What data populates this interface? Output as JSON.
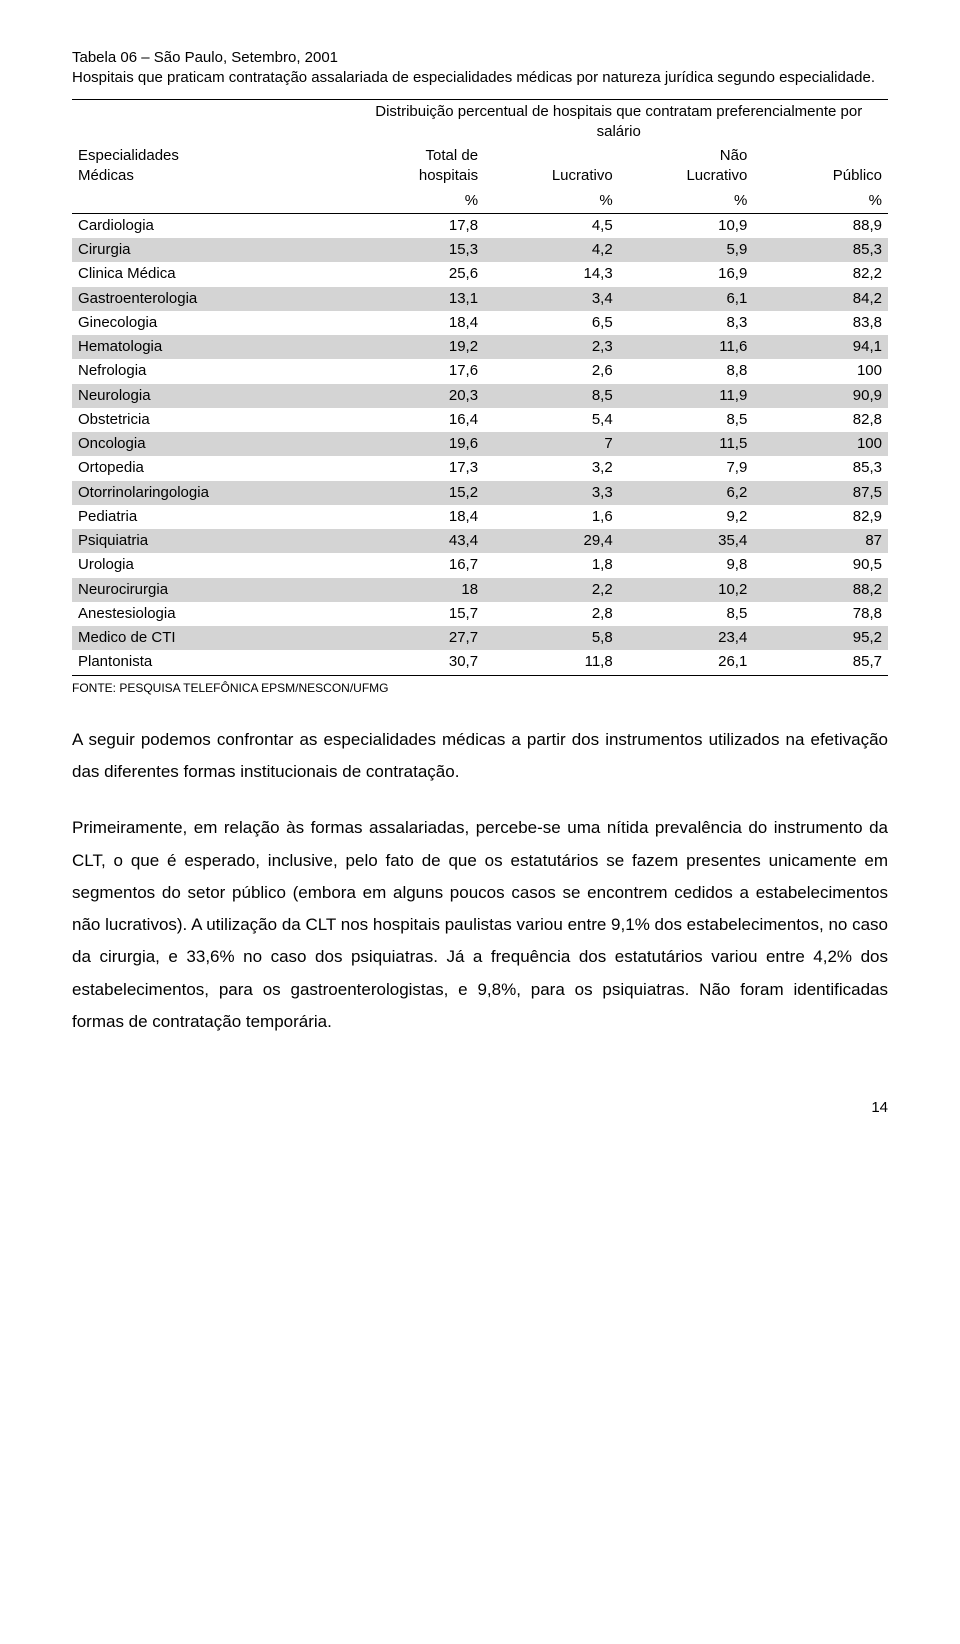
{
  "title": {
    "line1": "Tabela 06 – São Paulo, Setembro, 2001",
    "line2": "Hospitais que praticam contratação assalariada de especialidades médicas por natureza jurídica segundo especialidade."
  },
  "table": {
    "corner_label_line1": "Especialidades",
    "corner_label_line2": "Médicas",
    "merged_header": "Distribuição percentual de hospitais que contratam preferencialmente por salário",
    "col_labels": {
      "total_l1": "Total de",
      "total_l2": "hospitais",
      "lucrativo": "Lucrativo",
      "nao_l1": "Não",
      "nao_l2": "Lucrativo",
      "publico": "Público"
    },
    "pct_row": "%",
    "columns": [
      "Especialidade",
      "Total de hospitais",
      "Lucrativo",
      "Não Lucrativo",
      "Público"
    ],
    "rows": [
      {
        "label": "Cardiologia",
        "vals": [
          "17,8",
          "4,5",
          "10,9",
          "88,9"
        ],
        "alt": false
      },
      {
        "label": "Cirurgia",
        "vals": [
          "15,3",
          "4,2",
          "5,9",
          "85,3"
        ],
        "alt": true
      },
      {
        "label": "Clinica Médica",
        "vals": [
          "25,6",
          "14,3",
          "16,9",
          "82,2"
        ],
        "alt": false
      },
      {
        "label": "Gastroenterologia",
        "vals": [
          "13,1",
          "3,4",
          "6,1",
          "84,2"
        ],
        "alt": true
      },
      {
        "label": "Ginecologia",
        "vals": [
          "18,4",
          "6,5",
          "8,3",
          "83,8"
        ],
        "alt": false
      },
      {
        "label": "Hematologia",
        "vals": [
          "19,2",
          "2,3",
          "11,6",
          "94,1"
        ],
        "alt": true
      },
      {
        "label": "Nefrologia",
        "vals": [
          "17,6",
          "2,6",
          "8,8",
          "100"
        ],
        "alt": false
      },
      {
        "label": "Neurologia",
        "vals": [
          "20,3",
          "8,5",
          "11,9",
          "90,9"
        ],
        "alt": true
      },
      {
        "label": "Obstetricia",
        "vals": [
          "16,4",
          "5,4",
          "8,5",
          "82,8"
        ],
        "alt": false
      },
      {
        "label": "Oncologia",
        "vals": [
          "19,6",
          "7",
          "11,5",
          "100"
        ],
        "alt": true
      },
      {
        "label": "Ortopedia",
        "vals": [
          "17,3",
          "3,2",
          "7,9",
          "85,3"
        ],
        "alt": false
      },
      {
        "label": "Otorrinolaringologia",
        "vals": [
          "15,2",
          "3,3",
          "6,2",
          "87,5"
        ],
        "alt": true
      },
      {
        "label": "Pediatria",
        "vals": [
          "18,4",
          "1,6",
          "9,2",
          "82,9"
        ],
        "alt": false
      },
      {
        "label": "Psiquiatria",
        "vals": [
          "43,4",
          "29,4",
          "35,4",
          "87"
        ],
        "alt": true
      },
      {
        "label": "Urologia",
        "vals": [
          "16,7",
          "1,8",
          "9,8",
          "90,5"
        ],
        "alt": false
      },
      {
        "label": "Neurocirurgia",
        "vals": [
          "18",
          "2,2",
          "10,2",
          "88,2"
        ],
        "alt": true
      },
      {
        "label": "Anestesiologia",
        "vals": [
          "15,7",
          "2,8",
          "8,5",
          "78,8"
        ],
        "alt": false
      },
      {
        "label": "Medico de CTI",
        "vals": [
          "27,7",
          "5,8",
          "23,4",
          "95,2"
        ],
        "alt": true
      },
      {
        "label": "Plantonista",
        "vals": [
          "30,7",
          "11,8",
          "26,1",
          "85,7"
        ],
        "alt": false
      }
    ],
    "col_widths": [
      "34%",
      "16.5%",
      "16.5%",
      "16.5%",
      "16.5%"
    ],
    "alt_row_color": "#d4d4d4",
    "border_color": "#000000",
    "font_size_pt": 11
  },
  "footnote": "FONTE: PESQUISA TELEFÔNICA EPSM/NESCON/UFMG",
  "paragraphs": [
    "A seguir podemos confrontar as especialidades médicas a partir dos instrumentos utilizados na efetivação das diferentes formas institucionais de contratação.",
    "Primeiramente, em relação às formas assalariadas, percebe-se uma nítida prevalência do instrumento da CLT, o que é esperado, inclusive, pelo fato de que os estatutários se fazem presentes unicamente em segmentos do setor público (embora em alguns poucos casos se encontrem cedidos a estabelecimentos não lucrativos). A utilização da CLT nos hospitais paulistas variou entre 9,1% dos estabelecimentos, no caso da cirurgia, e 33,6% no caso dos psiquiatras. Já a frequência dos estatutários variou entre 4,2% dos estabelecimentos, para os gastroenterologistas, e 9,8%, para os psiquiatras. Não foram identificadas formas de contratação temporária."
  ],
  "page_number": "14",
  "colors": {
    "background": "#ffffff",
    "text": "#000000"
  }
}
